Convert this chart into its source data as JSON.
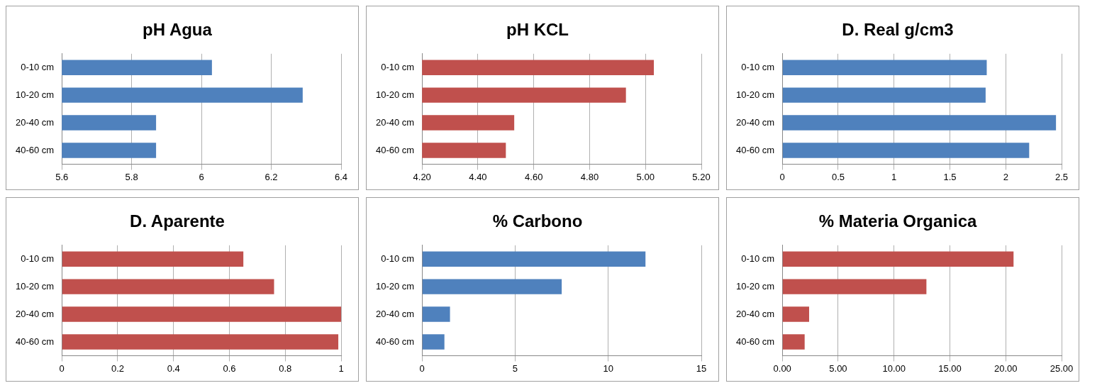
{
  "chart_data": [
    {
      "type": "bar",
      "orientation": "horizontal",
      "title": "pH Agua",
      "categories": [
        "0-10 cm",
        "10-20 cm",
        "20-40 cm",
        "40-60 cm"
      ],
      "values": [
        6.03,
        6.29,
        5.87,
        5.87
      ],
      "color": "#4f81bd",
      "xlim": [
        5.6,
        6.4
      ],
      "xticks": [
        5.6,
        5.8,
        6,
        6.2,
        6.4
      ],
      "grid": "x",
      "legend": false
    },
    {
      "type": "bar",
      "orientation": "horizontal",
      "title": "pH KCL",
      "categories": [
        "0-10 cm",
        "10-20 cm",
        "20-40 cm",
        "40-60 cm"
      ],
      "values": [
        5.03,
        4.93,
        4.53,
        4.5
      ],
      "color": "#c0504d",
      "xlim": [
        4.2,
        5.2
      ],
      "xticks": [
        {
          "value": 4.2,
          "label": "4.20"
        },
        {
          "value": 4.4,
          "label": "4.40"
        },
        {
          "value": 4.6,
          "label": "4.60"
        },
        {
          "value": 4.8,
          "label": "4.80"
        },
        {
          "value": 5,
          "label": "5.00"
        },
        {
          "value": 5.2,
          "label": "5.20"
        }
      ],
      "grid": "x",
      "legend": false
    },
    {
      "type": "bar",
      "orientation": "horizontal",
      "title": "D. Real g/cm3",
      "categories": [
        "0-10 cm",
        "10-20 cm",
        "20-40 cm",
        "40-60 cm"
      ],
      "values": [
        1.83,
        1.82,
        2.45,
        2.21
      ],
      "color": "#4f81bd",
      "xlim": [
        0,
        2.5
      ],
      "xticks": [
        0,
        0.5,
        1,
        1.5,
        2,
        2.5
      ],
      "grid": "x",
      "legend": false
    },
    {
      "type": "bar",
      "orientation": "horizontal",
      "title": "D. Aparente",
      "categories": [
        "0-10 cm",
        "10-20 cm",
        "20-40 cm",
        "40-60 cm"
      ],
      "values": [
        0.65,
        0.76,
        1.0,
        0.99
      ],
      "color": "#c0504d",
      "xlim": [
        0,
        1
      ],
      "xticks": [
        0,
        0.2,
        0.4,
        0.6,
        0.8,
        1
      ],
      "grid": "x",
      "legend": false
    },
    {
      "type": "bar",
      "orientation": "horizontal",
      "title": "% Carbono",
      "categories": [
        "0-10 cm",
        "10-20 cm",
        "20-40 cm",
        "40-60 cm"
      ],
      "values": [
        12.0,
        7.5,
        1.5,
        1.2
      ],
      "color": "#4f81bd",
      "xlim": [
        0,
        15
      ],
      "xticks": [
        0,
        5,
        10,
        15
      ],
      "grid": "x",
      "legend": false
    },
    {
      "type": "bar",
      "orientation": "horizontal",
      "title": "% Materia Organica",
      "categories": [
        "0-10 cm",
        "10-20 cm",
        "20-40 cm",
        "40-60 cm"
      ],
      "values": [
        20.7,
        12.9,
        2.4,
        2.0
      ],
      "color": "#c0504d",
      "xlim": [
        0,
        25
      ],
      "xticks": [
        {
          "value": 0,
          "label": "0.00"
        },
        {
          "value": 5,
          "label": "5.00"
        },
        {
          "value": 10,
          "label": "10.00"
        },
        {
          "value": 15,
          "label": "15.00"
        },
        {
          "value": 20,
          "label": "20.00"
        },
        {
          "value": 25,
          "label": "25.00"
        }
      ],
      "grid": "x",
      "legend": false
    }
  ]
}
